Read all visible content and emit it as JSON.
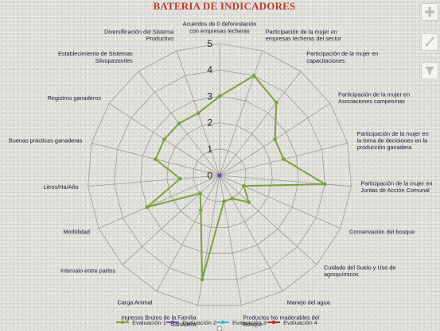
{
  "chart_data": {
    "type": "radar",
    "title": "BATERIA DE INDICADORES",
    "axes": [
      "Acuerdos de 0 deforestación con empresas lecheras",
      "Participación de la mujer en empresas lecheras del sector",
      "Participación de la mujer en capacitaciones",
      "Participación de la mujer en Asociaciones campesinas",
      "Participación de la mujer en la toma de decisiones en la producción ganadera",
      "Participación de la mujer en Juntas de Acción Comunal",
      "Conservación del bosque",
      "Cuidado del Suelo y Uso de agroquímicos",
      "Manejo del agua",
      "Productos No maderables del Bosque",
      "Ingresos Brutos de la Familia Ganadera",
      "Carga Animal",
      "Intervalo entre partos",
      "Morbilidad",
      "Litros/Ha/Año",
      "Buenas prácticas ganaderas",
      "Registros ganaderos",
      "Establecimiento de Sistemas Silvopastoriles",
      "Diversificación del Sistema Productivo"
    ],
    "rlim": [
      0,
      5
    ],
    "ticks": [
      "0",
      "1",
      "2",
      "3",
      "4",
      "5"
    ],
    "grid": true,
    "legend_position": "bottom",
    "series": [
      {
        "name": "Evaluación 1",
        "color": "#7aa33a",
        "values": [
          3,
          4,
          3.5,
          2.5,
          2.5,
          4,
          1,
          1.5,
          1,
          1,
          4,
          1.5,
          1,
          3,
          1.5,
          2.5,
          2.5,
          2.5,
          2.5
        ]
      },
      {
        "name": "Evaluación 2",
        "color": "#6f4fa8",
        "values": [
          0,
          0,
          0,
          0,
          0,
          0,
          0,
          0,
          0,
          0,
          0,
          0,
          0,
          0,
          0,
          0,
          0,
          0,
          0
        ]
      },
      {
        "name": "Evaluación 3",
        "color": "#3fb7c9",
        "values": [
          0,
          0,
          0,
          0,
          0,
          0,
          0,
          0,
          0,
          0,
          0,
          0,
          0,
          0,
          0,
          0,
          0,
          0,
          0
        ]
      },
      {
        "name": "Evaluación 4",
        "color": "#c0281f",
        "values": [
          0,
          0,
          0,
          0,
          0,
          0,
          0,
          0,
          0,
          0,
          0,
          0,
          0,
          0,
          0,
          0,
          0,
          0,
          0
        ]
      }
    ]
  },
  "toolbar": {
    "add_icon": "plus-icon",
    "style_icon": "brush-icon",
    "filter_icon": "filter-icon"
  }
}
